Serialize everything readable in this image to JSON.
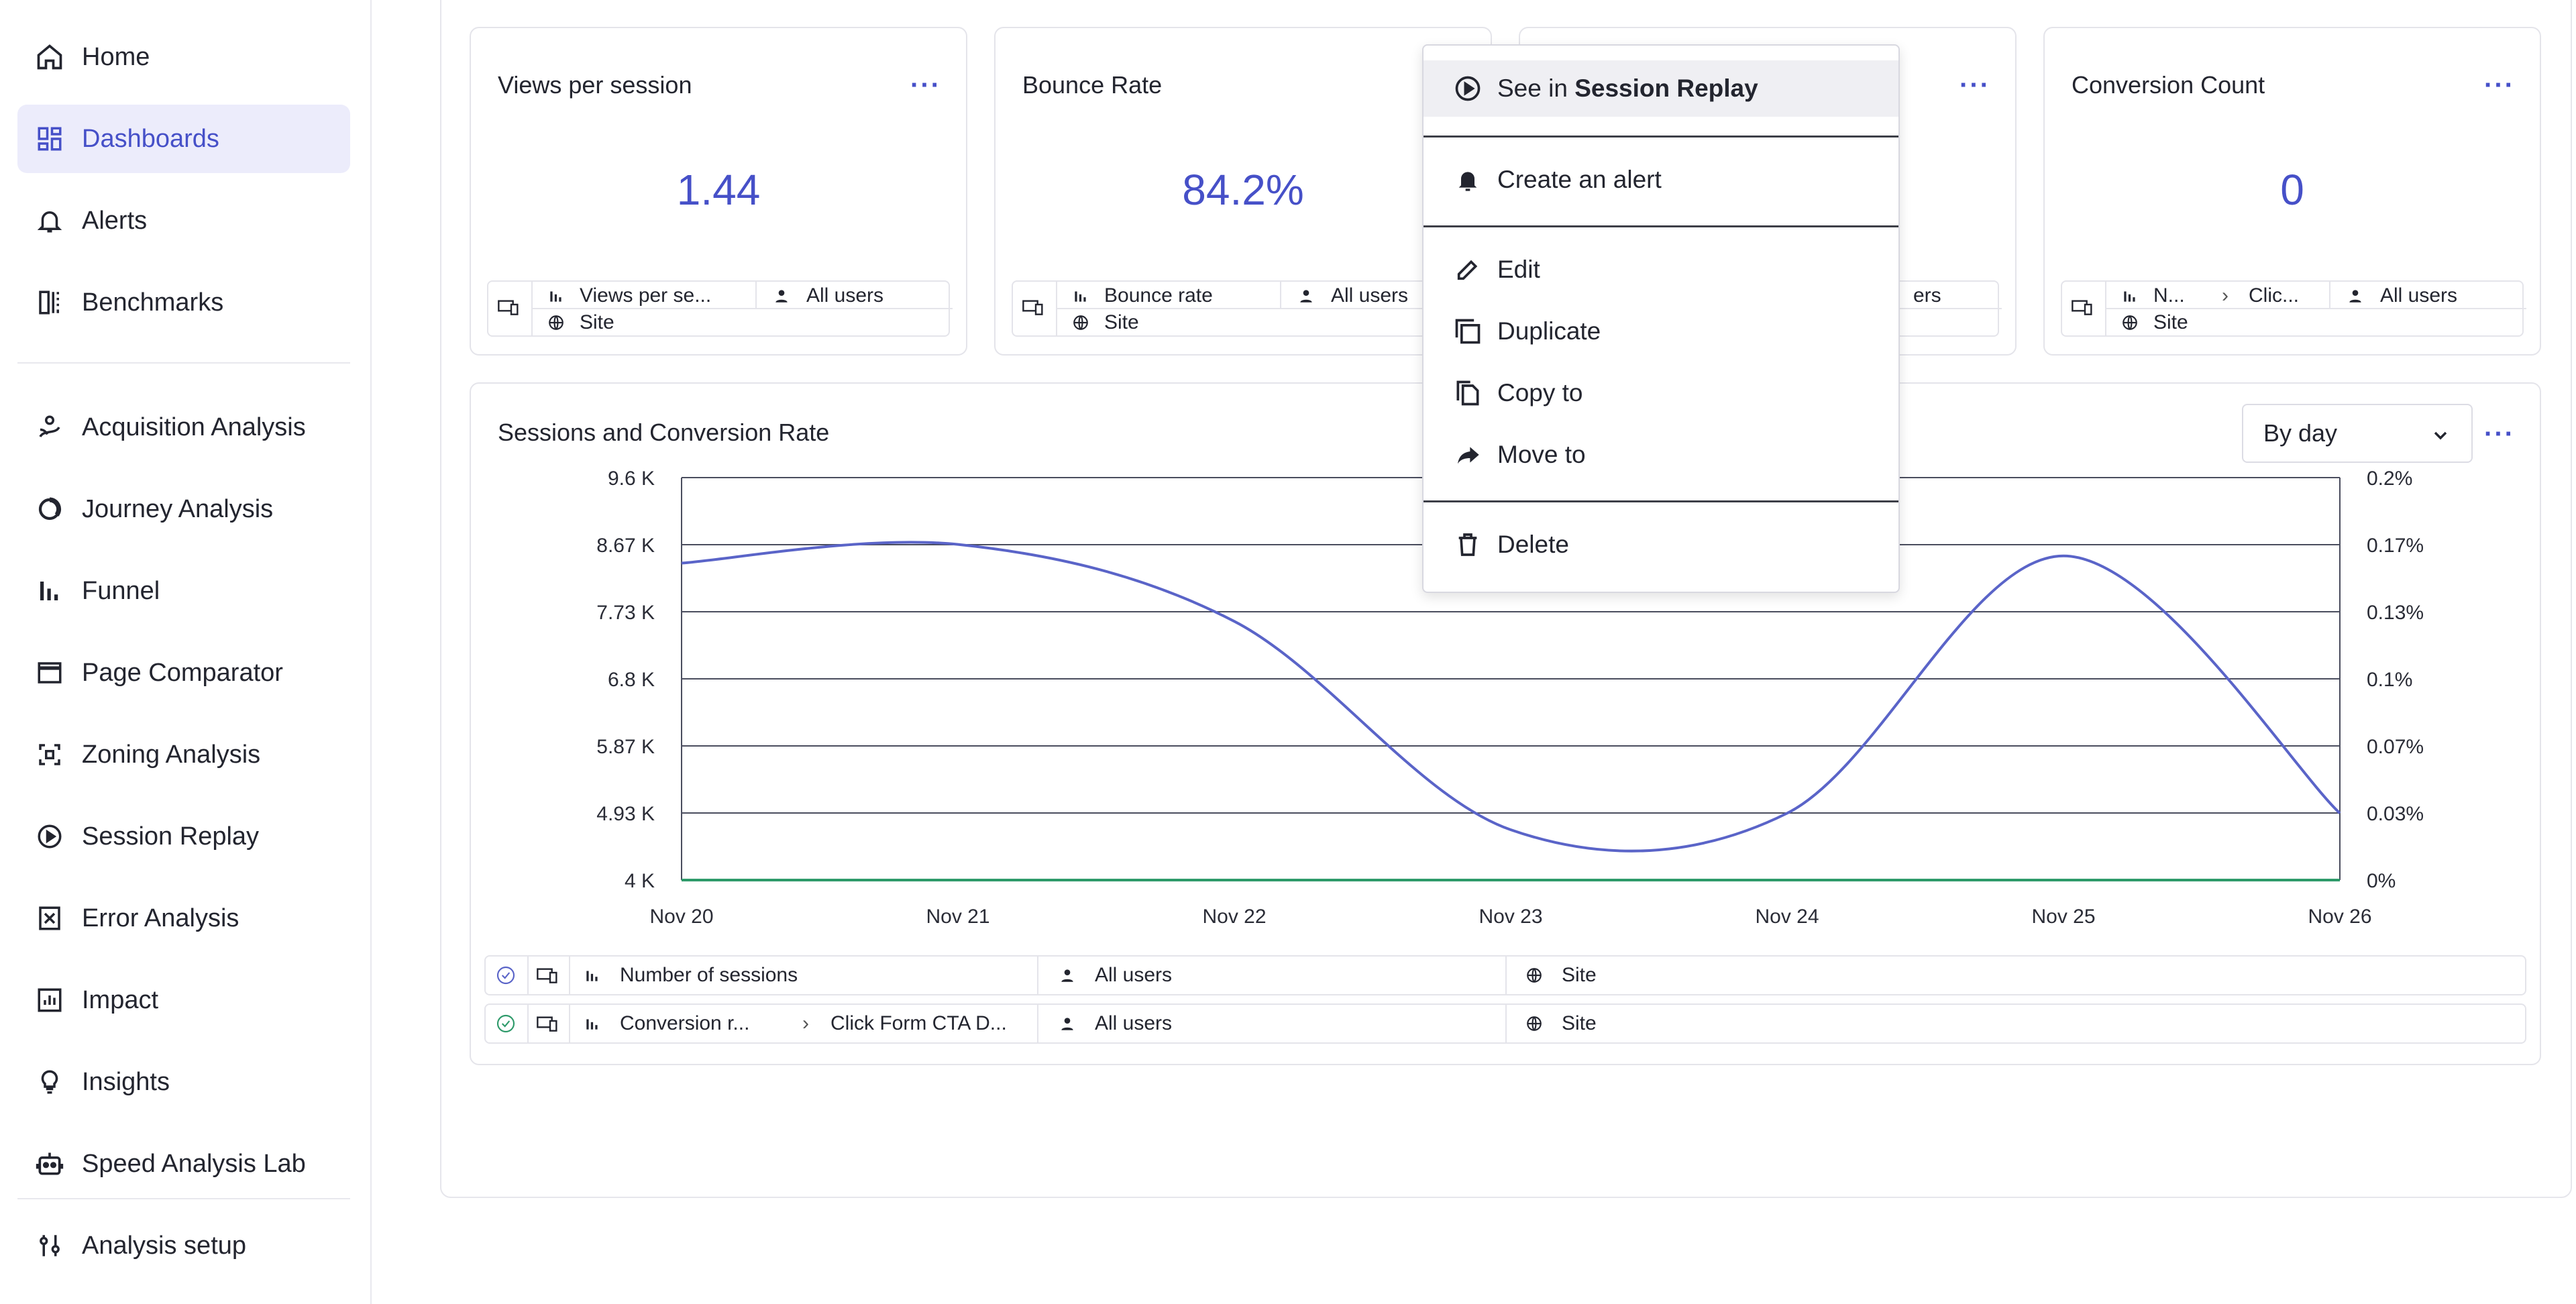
{
  "sidebar": {
    "items": [
      {
        "label": "Home",
        "icon": "home-icon"
      },
      {
        "label": "Dashboards",
        "icon": "dashboard-icon",
        "active": true
      },
      {
        "label": "Alerts",
        "icon": "bell-icon"
      },
      {
        "label": "Benchmarks",
        "icon": "benchmark-icon"
      },
      {
        "label": "Acquisition Analysis",
        "icon": "acquisition-icon"
      },
      {
        "label": "Journey Analysis",
        "icon": "journey-icon"
      },
      {
        "label": "Funnel",
        "icon": "funnel-icon"
      },
      {
        "label": "Page Comparator",
        "icon": "page-comparator-icon"
      },
      {
        "label": "Zoning Analysis",
        "icon": "zoning-icon"
      },
      {
        "label": "Session Replay",
        "icon": "play-circle-icon"
      },
      {
        "label": "Error Analysis",
        "icon": "error-icon"
      },
      {
        "label": "Impact",
        "icon": "impact-icon"
      },
      {
        "label": "Insights",
        "icon": "lightbulb-icon"
      },
      {
        "label": "Speed Analysis Lab",
        "icon": "robot-icon"
      },
      {
        "label": "Analysis setup",
        "icon": "sliders-icon"
      }
    ]
  },
  "kpi_cards": [
    {
      "title": "Views per session",
      "value": "1.44",
      "metric": "Views per se...",
      "segment": "All users",
      "scope": "Site"
    },
    {
      "title": "Bounce Rate",
      "value": "84.2%",
      "metric": "Bounce rate",
      "segment": "All users",
      "scope": "Site"
    },
    {
      "title": "",
      "value": "",
      "segment_partial": "ers"
    },
    {
      "title": "Conversion Count",
      "value": "0",
      "metric": "N...",
      "goal": "Clic...",
      "segment": "All users",
      "scope": "Site"
    }
  ],
  "chart_card": {
    "title": "Sessions and Conversion Rate",
    "granularity": "By day",
    "legend": [
      {
        "metric": "Number of sessions",
        "segment": "All users",
        "scope": "Site"
      },
      {
        "metric": "Conversion r...",
        "goal": "Click Form CTA D...",
        "segment": "All users",
        "scope": "Site"
      }
    ]
  },
  "chart_data": {
    "type": "line",
    "title": "Sessions and Conversion Rate",
    "x": [
      "Nov 20",
      "Nov 21",
      "Nov 22",
      "Nov 23",
      "Nov 24",
      "Nov 25",
      "Nov 26"
    ],
    "y_left_ticks": [
      "9.6 K",
      "8.67 K",
      "7.73 K",
      "6.8 K",
      "5.87 K",
      "4.93 K",
      "4 K"
    ],
    "y_right_ticks": [
      "0.2%",
      "0.17%",
      "0.13%",
      "0.1%",
      "0.07%",
      "0.03%",
      "0%"
    ],
    "ylim_left": [
      4000,
      9600
    ],
    "ylim_right": [
      0,
      0.2
    ],
    "grid": true,
    "series": [
      {
        "name": "Number of sessions",
        "axis": "left",
        "color": "#5a64c8",
        "values": [
          8410,
          8670,
          7600,
          4700,
          4930,
          8510,
          4930
        ]
      },
      {
        "name": "Conversion r...",
        "axis": "right",
        "color": "#2e9a6a",
        "values": [
          0,
          0,
          0,
          0,
          0,
          0,
          0
        ]
      }
    ]
  },
  "context_menu": {
    "items": [
      {
        "prefix": "See in ",
        "bold": "Session Replay",
        "icon": "play-circle-icon"
      },
      {
        "label": "Create an alert",
        "icon": "bell-icon"
      },
      {
        "label": "Edit",
        "icon": "pencil-icon"
      },
      {
        "label": "Duplicate",
        "icon": "duplicate-icon"
      },
      {
        "label": "Copy to",
        "icon": "copy-icon"
      },
      {
        "label": "Move to",
        "icon": "share-arrow-icon"
      },
      {
        "label": "Delete",
        "icon": "trash-icon"
      }
    ]
  },
  "colors": {
    "accent": "#4650c8",
    "line": "#5a64c8",
    "conversion": "#2e9a6a",
    "active_bg": "#ececfb"
  }
}
